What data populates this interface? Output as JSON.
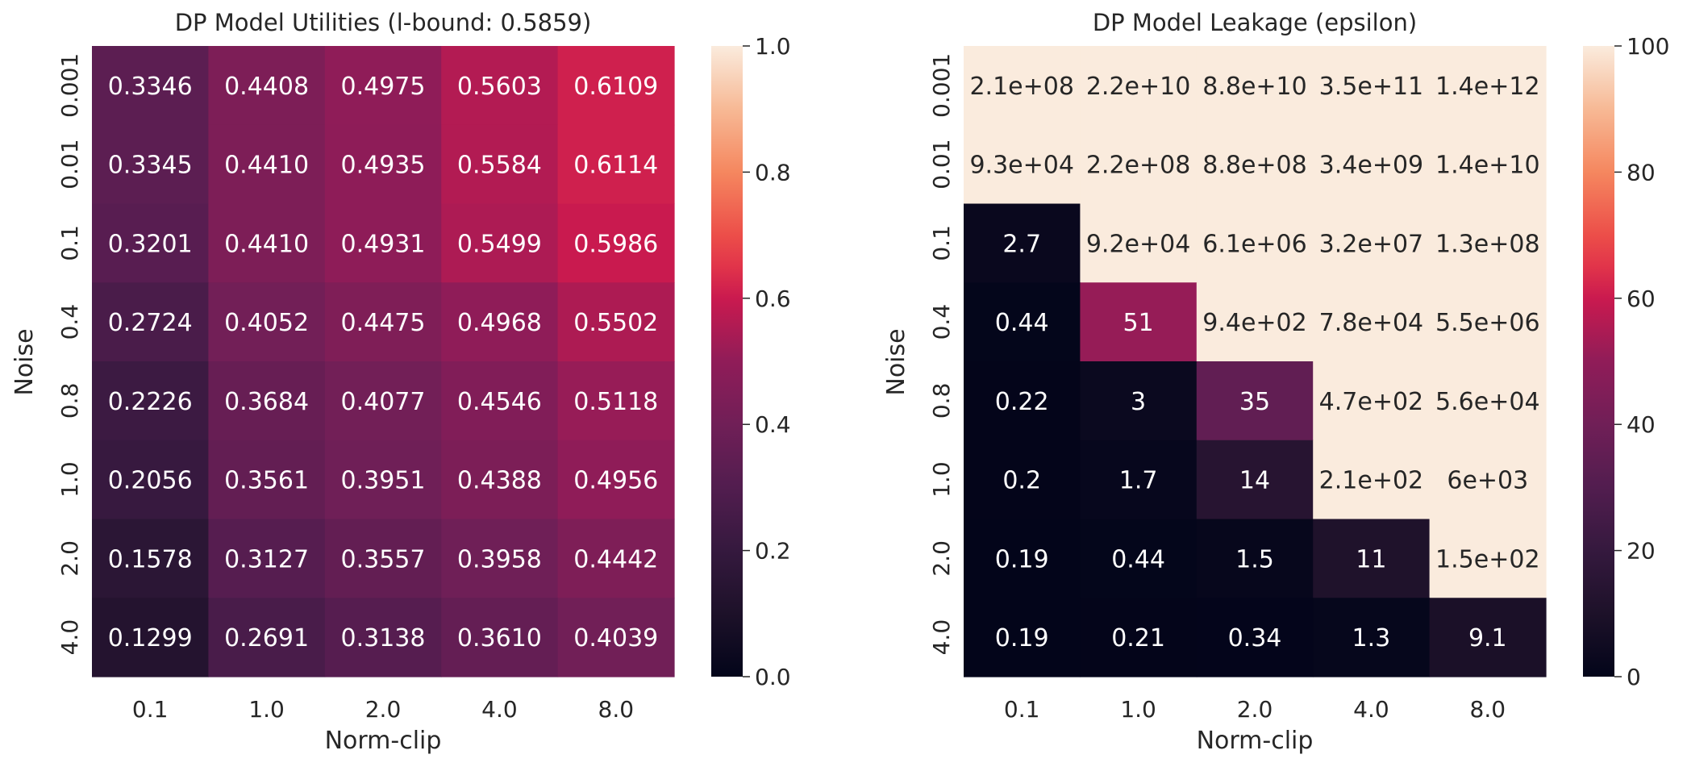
{
  "chart_data": [
    {
      "type": "heatmap",
      "title": "DP Model Utilities (l-bound: 0.5859)",
      "xlabel": "Norm-clip",
      "ylabel": "Noise",
      "x_ticks": [
        "0.1",
        "1.0",
        "2.0",
        "4.0",
        "8.0"
      ],
      "y_ticks": [
        "0.001",
        "0.01",
        "0.1",
        "0.4",
        "0.8",
        "1.0",
        "2.0",
        "4.0"
      ],
      "values": [
        [
          0.3346,
          0.4408,
          0.4975,
          0.5603,
          0.6109
        ],
        [
          0.3345,
          0.441,
          0.4935,
          0.5584,
          0.6114
        ],
        [
          0.3201,
          0.441,
          0.4931,
          0.5499,
          0.5986
        ],
        [
          0.2724,
          0.4052,
          0.4475,
          0.4968,
          0.5502
        ],
        [
          0.2226,
          0.3684,
          0.4077,
          0.4546,
          0.5118
        ],
        [
          0.2056,
          0.3561,
          0.3951,
          0.4388,
          0.4956
        ],
        [
          0.1578,
          0.3127,
          0.3557,
          0.3958,
          0.4442
        ],
        [
          0.1299,
          0.2691,
          0.3138,
          0.361,
          0.4039
        ]
      ],
      "annotations": [
        [
          "0.3346",
          "0.4408",
          "0.4975",
          "0.5603",
          "0.6109"
        ],
        [
          "0.3345",
          "0.4410",
          "0.4935",
          "0.5584",
          "0.6114"
        ],
        [
          "0.3201",
          "0.4410",
          "0.4931",
          "0.5499",
          "0.5986"
        ],
        [
          "0.2724",
          "0.4052",
          "0.4475",
          "0.4968",
          "0.5502"
        ],
        [
          "0.2226",
          "0.3684",
          "0.4077",
          "0.4546",
          "0.5118"
        ],
        [
          "0.2056",
          "0.3561",
          "0.3951",
          "0.4388",
          "0.4956"
        ],
        [
          "0.1578",
          "0.3127",
          "0.3557",
          "0.3958",
          "0.4442"
        ],
        [
          "0.1299",
          "0.2691",
          "0.3138",
          "0.3610",
          "0.4039"
        ]
      ],
      "colorbar": {
        "range": [
          0.0,
          1.0
        ],
        "ticks": [
          "0.0",
          "0.2",
          "0.4",
          "0.6",
          "0.8",
          "1.0"
        ],
        "colormap": "rocket"
      }
    },
    {
      "type": "heatmap",
      "title": "DP Model Leakage (epsilon)",
      "xlabel": "Norm-clip",
      "ylabel": "Noise",
      "x_ticks": [
        "0.1",
        "1.0",
        "2.0",
        "4.0",
        "8.0"
      ],
      "y_ticks": [
        "0.001",
        "0.01",
        "0.1",
        "0.4",
        "0.8",
        "1.0",
        "2.0",
        "4.0"
      ],
      "values": [
        [
          210000000.0,
          22000000000.0,
          88000000000.0,
          350000000000.0,
          1400000000000.0
        ],
        [
          93000.0,
          220000000.0,
          880000000.0,
          3400000000.0,
          14000000000.0
        ],
        [
          2.7,
          92000.0,
          6100000.0,
          32000000.0,
          130000000.0
        ],
        [
          0.44,
          51,
          940,
          78000.0,
          5500000.0
        ],
        [
          0.22,
          3,
          35,
          470,
          56000.0
        ],
        [
          0.2,
          1.7,
          14,
          210,
          6000
        ],
        [
          0.19,
          0.44,
          1.5,
          11,
          150
        ],
        [
          0.19,
          0.21,
          0.34,
          1.3,
          9.1
        ]
      ],
      "annotations": [
        [
          "2.1e+08",
          "2.2e+10",
          "8.8e+10",
          "3.5e+11",
          "1.4e+12"
        ],
        [
          "9.3e+04",
          "2.2e+08",
          "8.8e+08",
          "3.4e+09",
          "1.4e+10"
        ],
        [
          "2.7",
          "9.2e+04",
          "6.1e+06",
          "3.2e+07",
          "1.3e+08"
        ],
        [
          "0.44",
          "51",
          "9.4e+02",
          "7.8e+04",
          "5.5e+06"
        ],
        [
          "0.22",
          "3",
          "35",
          "4.7e+02",
          "5.6e+04"
        ],
        [
          "0.2",
          "1.7",
          "14",
          "2.1e+02",
          "6e+03"
        ],
        [
          "0.19",
          "0.44",
          "1.5",
          "11",
          "1.5e+02"
        ],
        [
          "0.19",
          "0.21",
          "0.34",
          "1.3",
          "9.1"
        ]
      ],
      "colorbar": {
        "range": [
          0,
          100
        ],
        "ticks": [
          "0",
          "20",
          "40",
          "60",
          "80",
          "100"
        ],
        "colormap": "rocket"
      }
    }
  ]
}
